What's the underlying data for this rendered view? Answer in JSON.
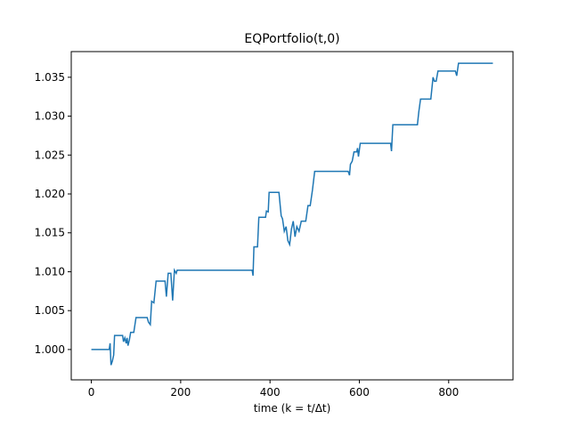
{
  "chart_data": {
    "type": "line",
    "title": "EQPortfolio(t,0)",
    "xlabel": "time (k = t/Δt)",
    "x": [
      0,
      40,
      42,
      44,
      47,
      50,
      52,
      70,
      72,
      75,
      78,
      80,
      82,
      85,
      88,
      95,
      100,
      125,
      128,
      132,
      135,
      140,
      145,
      165,
      168,
      172,
      178,
      182,
      186,
      190,
      192,
      360,
      362,
      364,
      372,
      375,
      390,
      392,
      396,
      398,
      420,
      425,
      428,
      432,
      436,
      440,
      444,
      448,
      452,
      456,
      460,
      465,
      470,
      480,
      485,
      490,
      495,
      500,
      575,
      578,
      580,
      584,
      588,
      594,
      596,
      598,
      602,
      670,
      672,
      675,
      730,
      733,
      737,
      760,
      765,
      768,
      772,
      776,
      815,
      818,
      822,
      899
    ],
    "series": [
      {
        "name": "EQPortfolio",
        "color": "#1f77b4",
        "values": [
          1.0,
          1.0,
          1.0008,
          0.998,
          0.9985,
          0.9993,
          1.0018,
          1.0018,
          1.001,
          1.0015,
          1.0008,
          1.0015,
          1.0005,
          1.0012,
          1.0022,
          1.0022,
          1.0041,
          1.0041,
          1.0035,
          1.0032,
          1.0062,
          1.006,
          1.0088,
          1.0088,
          1.0068,
          1.0098,
          1.0098,
          1.0063,
          1.0102,
          1.0098,
          1.0102,
          1.0102,
          1.0095,
          1.0132,
          1.0132,
          1.017,
          1.017,
          1.0178,
          1.0177,
          1.0202,
          1.0202,
          1.0172,
          1.0168,
          1.0152,
          1.0158,
          1.014,
          1.0135,
          1.0155,
          1.0165,
          1.0145,
          1.0158,
          1.0152,
          1.0165,
          1.0165,
          1.0185,
          1.0185,
          1.0205,
          1.0229,
          1.0229,
          1.0224,
          1.0238,
          1.0242,
          1.0254,
          1.0254,
          1.0259,
          1.0248,
          1.0265,
          1.0265,
          1.0255,
          1.0289,
          1.0289,
          1.0305,
          1.0322,
          1.0322,
          1.035,
          1.0345,
          1.0345,
          1.0358,
          1.0358,
          1.0352,
          1.0368,
          1.0368
        ]
      }
    ],
    "xlim": [
      -45,
      944
    ],
    "xticks": [
      0,
      200,
      400,
      600,
      800
    ],
    "ylim": [
      0.9961,
      1.0383
    ],
    "yticks": [
      {
        "value": 1.0,
        "label": "1.000"
      },
      {
        "value": 1.005,
        "label": "1.005"
      },
      {
        "value": 1.01,
        "label": "1.010"
      },
      {
        "value": 1.015,
        "label": "1.015"
      },
      {
        "value": 1.02,
        "label": "1.020"
      },
      {
        "value": 1.025,
        "label": "1.025"
      },
      {
        "value": 1.03,
        "label": "1.030"
      },
      {
        "value": 1.035,
        "label": "1.035"
      }
    ],
    "grid": false
  }
}
